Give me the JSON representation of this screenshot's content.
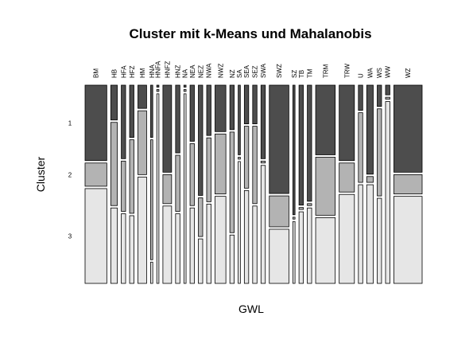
{
  "chart_data": {
    "type": "mosaic",
    "title": "Cluster mit k-Means und Mahalanobis",
    "xlabel": "GWL",
    "ylabel": "Cluster",
    "categories": [
      "BM",
      "HB",
      "HFA",
      "HFZ",
      "HM",
      "HNA",
      "HNFA",
      "HNFZ",
      "HNZ",
      "NA",
      "NEA",
      "NEZ",
      "NWA",
      "NWZ",
      "NZ",
      "SA",
      "SEA",
      "SEZ",
      "SWA",
      "SWZ",
      "SZ",
      "TB",
      "TM",
      "TRM",
      "TRW",
      "U",
      "WA",
      "WS",
      "WW",
      "WZ"
    ],
    "cluster_labels": [
      "1",
      "2",
      "3"
    ],
    "category_weights": [
      10,
      3,
      2,
      2,
      4,
      1,
      1,
      4,
      2,
      1,
      2,
      2,
      2,
      5,
      2,
      1,
      2,
      2,
      2,
      9,
      1,
      2,
      2,
      9,
      7,
      2,
      3,
      2,
      2,
      13
    ],
    "series": [
      {
        "name": "1",
        "color": "#4d4d4d",
        "proportions": [
          0.39,
          0.18,
          0.38,
          0.27,
          0.12,
          0.27,
          0.01,
          0.45,
          0.35,
          0.01,
          0.29,
          0.57,
          0.26,
          0.24,
          0.23,
          0.36,
          0.2,
          0.2,
          0.38,
          0.56,
          0.67,
          0.62,
          0.6,
          0.36,
          0.39,
          0.13,
          0.46,
          0.11,
          0.05,
          0.45
        ]
      },
      {
        "name": "2",
        "color": "#b3b3b3",
        "proportions": [
          0.12,
          0.43,
          0.26,
          0.38,
          0.33,
          0.62,
          0.01,
          0.15,
          0.29,
          0.01,
          0.32,
          0.2,
          0.33,
          0.31,
          0.52,
          0.01,
          0.32,
          0.4,
          0.01,
          0.16,
          0.01,
          0.01,
          0.01,
          0.3,
          0.15,
          0.36,
          0.03,
          0.45,
          0.01,
          0.1
        ]
      },
      {
        "name": "3",
        "color": "#e6e6e6",
        "proportions": [
          0.49,
          0.39,
          0.36,
          0.35,
          0.55,
          0.11,
          0.98,
          0.4,
          0.36,
          0.98,
          0.39,
          0.23,
          0.41,
          0.45,
          0.25,
          0.63,
          0.48,
          0.4,
          0.61,
          0.28,
          0.32,
          0.37,
          0.39,
          0.34,
          0.46,
          0.51,
          0.51,
          0.44,
          0.94,
          0.45
        ]
      }
    ]
  }
}
